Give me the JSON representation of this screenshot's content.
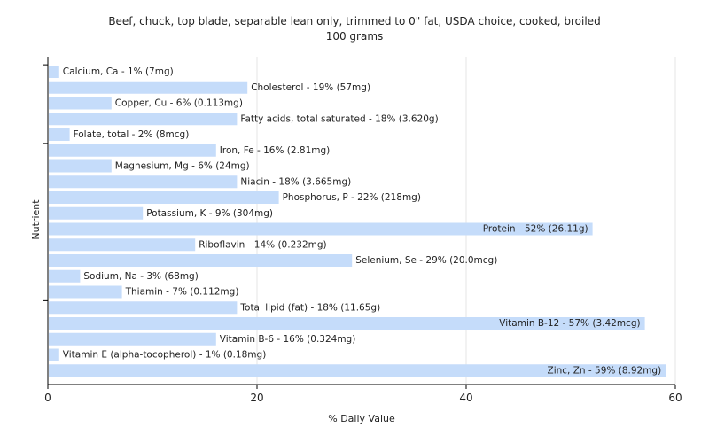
{
  "title_line1": "Beef, chuck, top blade, separable lean only, trimmed to 0\" fat, USDA choice, cooked, broiled",
  "title_line2": "100 grams",
  "chart_data": {
    "type": "bar",
    "orientation": "horizontal",
    "xlabel": "% Daily Value",
    "ylabel": "Nutrient",
    "xlim": [
      0,
      60
    ],
    "xticks": [
      0,
      20,
      40,
      60
    ],
    "grid": true,
    "bar_color": "#c5dcfa",
    "categories": [
      "Calcium, Ca",
      "Cholesterol",
      "Copper, Cu",
      "Fatty acids, total saturated",
      "Folate, total",
      "Iron, Fe",
      "Magnesium, Mg",
      "Niacin",
      "Phosphorus, P",
      "Potassium, K",
      "Protein",
      "Riboflavin",
      "Selenium, Se",
      "Sodium, Na",
      "Thiamin",
      "Total lipid (fat)",
      "Vitamin B-12",
      "Vitamin B-6",
      "Vitamin E (alpha-tocopherol)",
      "Zinc, Zn"
    ],
    "values": [
      1,
      19,
      6,
      18,
      2,
      16,
      6,
      18,
      22,
      9,
      52,
      14,
      29,
      3,
      7,
      18,
      57,
      16,
      1,
      59
    ],
    "labels": [
      "Calcium, Ca - 1% (7mg)",
      "Cholesterol - 19% (57mg)",
      "Copper, Cu - 6% (0.113mg)",
      "Fatty acids, total saturated - 18% (3.620g)",
      "Folate, total - 2% (8mcg)",
      "Iron, Fe - 16% (2.81mg)",
      "Magnesium, Mg - 6% (24mg)",
      "Niacin - 18% (3.665mg)",
      "Phosphorus, P - 22% (218mg)",
      "Potassium, K - 9% (304mg)",
      "Protein - 52% (26.11g)",
      "Riboflavin - 14% (0.232mg)",
      "Selenium, Se - 29% (20.0mcg)",
      "Sodium, Na - 3% (68mg)",
      "Thiamin - 7% (0.112mg)",
      "Total lipid (fat) - 18% (11.65g)",
      "Vitamin B-12 - 57% (3.42mcg)",
      "Vitamin B-6 - 16% (0.324mg)",
      "Vitamin E (alpha-tocopherol) - 1% (0.18mg)",
      "Zinc, Zn - 59% (8.92mg)"
    ]
  }
}
